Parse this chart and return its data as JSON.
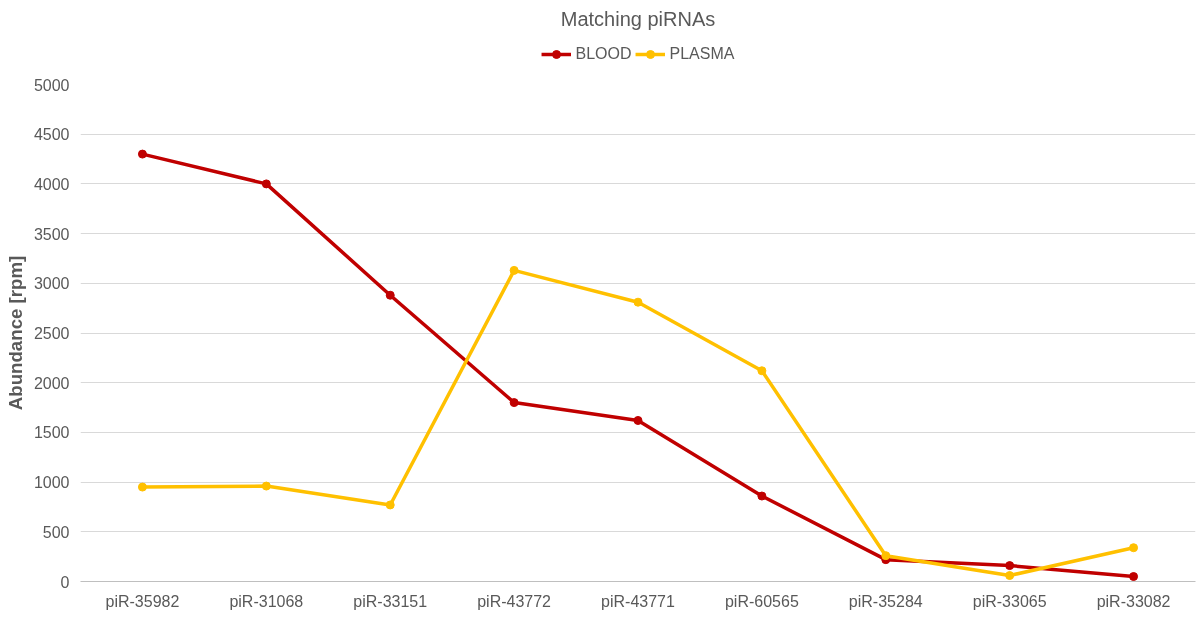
{
  "chart_data": {
    "type": "line",
    "title": "Matching piRNAs",
    "ylabel": "Abundance [rpm]",
    "categories": [
      "piR-35982",
      "piR-31068",
      "piR-33151",
      "piR-43772",
      "piR-43771",
      "piR-60565",
      "piR-35284",
      "piR-33065",
      "piR-33082"
    ],
    "series": [
      {
        "name": "BLOOD",
        "color": "#c00000",
        "values": [
          4300,
          4000,
          2880,
          1800,
          1620,
          860,
          220,
          160,
          50
        ]
      },
      {
        "name": "PLASMA",
        "color": "#ffc000",
        "values": [
          950,
          960,
          770,
          3130,
          2810,
          2120,
          260,
          60,
          340
        ]
      }
    ],
    "ylim": [
      0,
      5000
    ],
    "yticks": [
      0,
      500,
      1000,
      1500,
      2000,
      2500,
      3000,
      3500,
      4000,
      4500,
      5000
    ],
    "grid": "y",
    "legend": "top",
    "marker": "circle",
    "line_style": "solid"
  }
}
